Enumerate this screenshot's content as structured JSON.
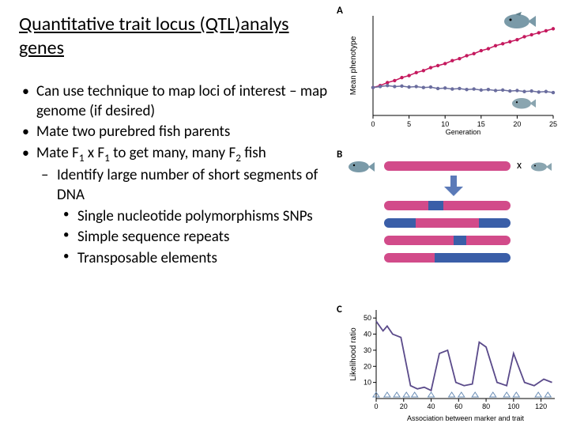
{
  "title": "Quantitative trait locus (QTL)analys genes",
  "bullets": {
    "b1": "Can use technique to map loci of interest – map genome (if desired)",
    "b2": "Mate two purebred fish parents",
    "b3_pre": "Mate F",
    "b3_mid": " x F",
    "b3_post": "  to get many, many F",
    "b3_end": " fish",
    "sub1": "1",
    "sub2": "2",
    "s1": "Identify large number of short segments of DNA",
    "t1": "Single nucleotide polymorphisms  SNPs",
    "t2": "Simple sequence repeats",
    "t3": "Transposable elements"
  },
  "panelA": {
    "label": "A",
    "type": "line",
    "ylabel": "Mean phenotype",
    "xlabel": "Generation",
    "xticks": [
      "0",
      "5",
      "10",
      "15",
      "20",
      "25"
    ],
    "xlim": [
      0,
      25
    ],
    "ylim": [
      0,
      10
    ],
    "series": [
      {
        "color": "#c5195e",
        "marker": "circle",
        "x": [
          0,
          1,
          2,
          3,
          4,
          5,
          6,
          7,
          8,
          9,
          10,
          11,
          12,
          13,
          14,
          15,
          16,
          17,
          18,
          19,
          20,
          21,
          22,
          23,
          24,
          25
        ],
        "y": [
          2.8,
          3.0,
          3.3,
          3.5,
          3.8,
          4.0,
          4.3,
          4.5,
          4.8,
          5.0,
          5.2,
          5.5,
          5.7,
          6.0,
          6.2,
          6.5,
          6.7,
          7.0,
          7.2,
          7.4,
          7.6,
          7.9,
          8.1,
          8.3,
          8.5,
          8.7
        ]
      },
      {
        "color": "#6a6d9e",
        "marker": "circle",
        "x": [
          0,
          1,
          2,
          3,
          4,
          5,
          6,
          7,
          8,
          9,
          10,
          11,
          12,
          13,
          14,
          15,
          16,
          17,
          18,
          19,
          20,
          21,
          22,
          23,
          24,
          25
        ],
        "y": [
          2.8,
          2.9,
          3.0,
          2.9,
          2.95,
          2.85,
          2.9,
          2.8,
          2.85,
          2.7,
          2.75,
          2.65,
          2.7,
          2.6,
          2.65,
          2.55,
          2.6,
          2.5,
          2.55,
          2.45,
          2.5,
          2.4,
          2.45,
          2.35,
          2.4,
          2.3
        ]
      }
    ],
    "grid_color": "#cccccc",
    "axis_color": "#000000",
    "background": "#ffffff"
  },
  "panelB": {
    "label": "B",
    "type": "chromosome-recombination",
    "colors": {
      "pink": "#d24b8a",
      "blue": "#3a5ea8"
    },
    "cross_symbol": "x",
    "arrow_color": "#5b7ab8",
    "parents": [
      {
        "segments": [
          {
            "c": "pink",
            "w": 1.0
          }
        ]
      },
      {
        "segments": [
          {
            "c": "blue",
            "w": 1.0
          }
        ]
      }
    ],
    "offspring": [
      {
        "segments": [
          {
            "c": "pink",
            "w": 0.35
          },
          {
            "c": "blue",
            "w": 0.12
          },
          {
            "c": "pink",
            "w": 0.53
          }
        ]
      },
      {
        "segments": [
          {
            "c": "blue",
            "w": 0.25
          },
          {
            "c": "pink",
            "w": 0.5
          },
          {
            "c": "blue",
            "w": 0.25
          }
        ]
      },
      {
        "segments": [
          {
            "c": "pink",
            "w": 0.55
          },
          {
            "c": "blue",
            "w": 0.1
          },
          {
            "c": "pink",
            "w": 0.35
          }
        ]
      },
      {
        "segments": [
          {
            "c": "pink",
            "w": 0.4
          },
          {
            "c": "blue",
            "w": 0.6
          }
        ]
      }
    ]
  },
  "panelC": {
    "label": "C",
    "type": "line",
    "ylabel": "Likelihood ratio",
    "xlabel": "Association between marker and trait",
    "xticks": [
      "0",
      "20",
      "40",
      "60",
      "80",
      "100",
      "120"
    ],
    "yticks": [
      "10",
      "20",
      "30",
      "40",
      "50"
    ],
    "xlim": [
      0,
      130
    ],
    "ylim": [
      0,
      55
    ],
    "line_color": "#5a4a8a",
    "marker_color": "#6a8db5",
    "x": [
      0,
      5,
      8,
      12,
      18,
      25,
      30,
      35,
      40,
      46,
      52,
      58,
      64,
      70,
      75,
      80,
      88,
      95,
      100,
      108,
      115,
      122,
      128
    ],
    "y": [
      48,
      42,
      45,
      40,
      38,
      8,
      6,
      7,
      5,
      28,
      30,
      10,
      8,
      9,
      35,
      32,
      10,
      8,
      28,
      10,
      8,
      12,
      10
    ],
    "markers_x": [
      0,
      8,
      15,
      22,
      28,
      40,
      55,
      62,
      72,
      85,
      95,
      102,
      118,
      125
    ]
  }
}
